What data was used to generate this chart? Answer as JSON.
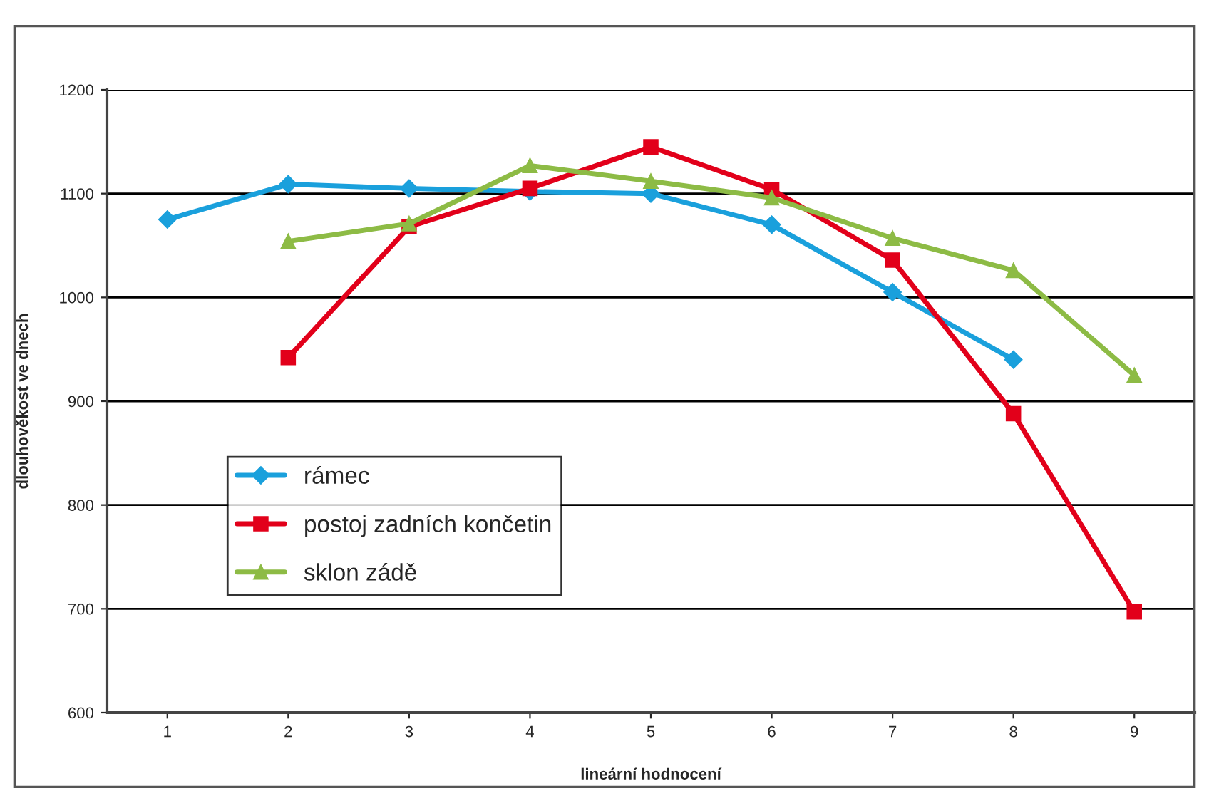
{
  "chart_data": {
    "type": "line",
    "xlabel": "lineární hodnocení",
    "ylabel": "dlouhověkost ve dnech",
    "categories": [
      "1",
      "2",
      "3",
      "4",
      "5",
      "6",
      "7",
      "8",
      "9"
    ],
    "series": [
      {
        "name": "rámec",
        "color": "#1aa0dc",
        "marker": "diamond",
        "values": [
          1075,
          1109,
          1105,
          1102,
          1100,
          1070,
          1005,
          940,
          null
        ]
      },
      {
        "name": "postoj zadních končetin",
        "color": "#e2001a",
        "marker": "square",
        "values": [
          null,
          942,
          1068,
          1105,
          1145,
          1104,
          1036,
          888,
          697
        ]
      },
      {
        "name": "sklon zádě",
        "color": "#8dbb45",
        "marker": "triangle",
        "values": [
          null,
          1054,
          1071,
          1127,
          1112,
          1096,
          1057,
          1026,
          925
        ]
      }
    ],
    "ylim": [
      600,
      1200
    ],
    "yticks": [
      600,
      700,
      800,
      900,
      1000,
      1100,
      1200
    ],
    "grid": "y",
    "legend": "bottom left",
    "line_style": "solid"
  }
}
